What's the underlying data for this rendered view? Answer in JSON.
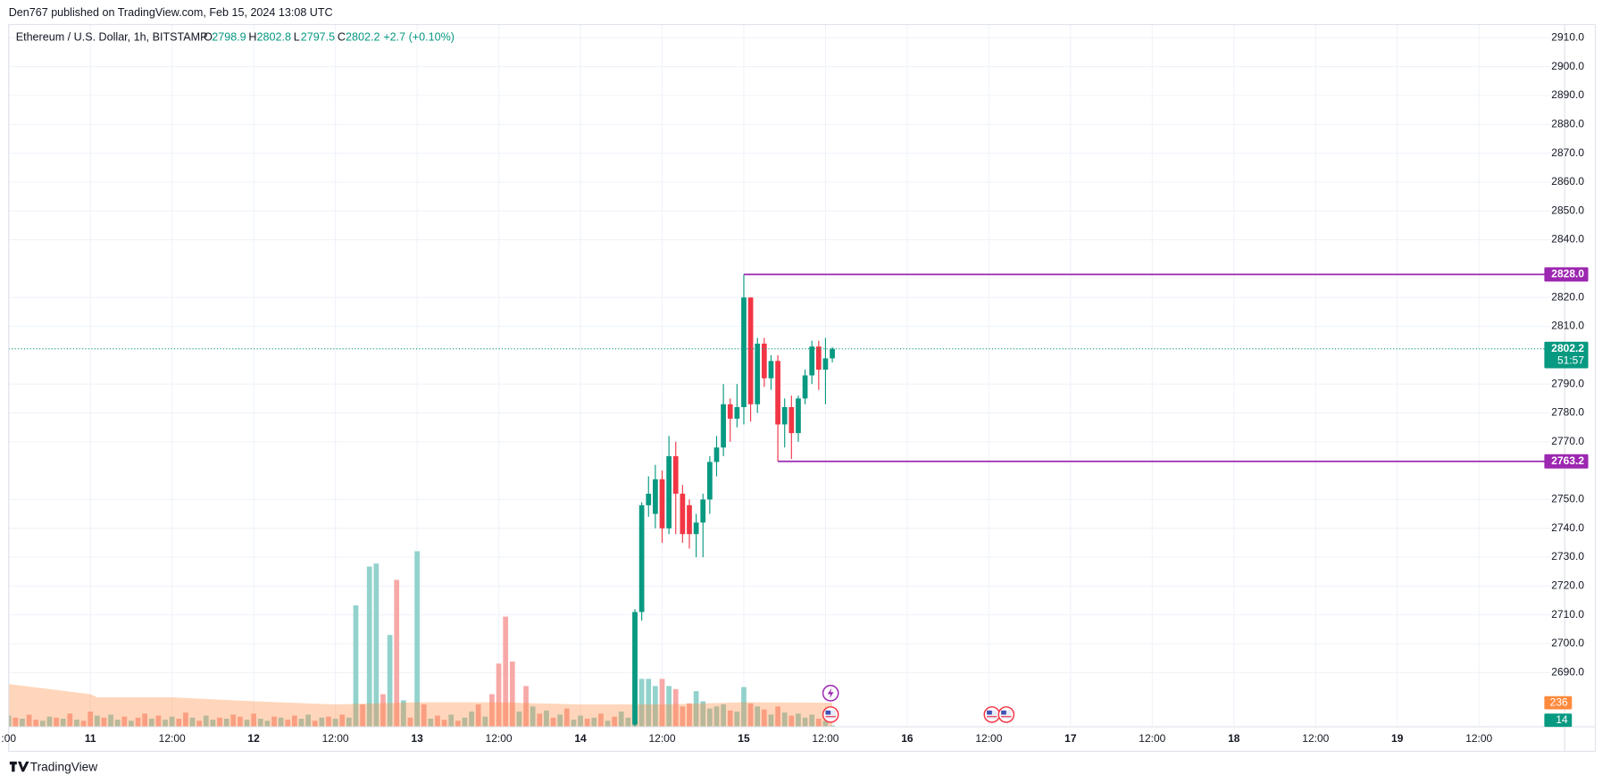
{
  "header": "Den767 published on TradingView.com, Feb 15, 2024 13:08 UTC",
  "footer": "TradingView",
  "chart_data": {
    "type": "candlestick",
    "symbol": "Ethereum / U.S. Dollar, 1h, BITSTAMP",
    "ohlc_labels": [
      "O",
      "H",
      "L",
      "C"
    ],
    "change": "+2.7 (+0.10%)",
    "countdown": "51:57",
    "up_color": "#089981",
    "down_color": "#f23645",
    "level_color": "#9c27b0",
    "xlim": [
      0,
      228.6
    ],
    "ylim": [
      2671.2,
      2914.6
    ],
    "grid": true,
    "xticks": [
      {
        "value": 0,
        "label": ":00"
      },
      {
        "value": 12,
        "label": "11"
      },
      {
        "value": 24,
        "label": "12:00"
      },
      {
        "value": 36,
        "label": "12"
      },
      {
        "value": 48,
        "label": "12:00"
      },
      {
        "value": 60,
        "label": "13"
      },
      {
        "value": 72,
        "label": "12:00"
      },
      {
        "value": 84,
        "label": "14"
      },
      {
        "value": 96,
        "label": "12:00"
      },
      {
        "value": 108,
        "label": "15"
      },
      {
        "value": 120,
        "label": "12:00"
      },
      {
        "value": 132,
        "label": "16"
      },
      {
        "value": 144,
        "label": "12:00"
      },
      {
        "value": 156,
        "label": "17"
      },
      {
        "value": 168,
        "label": "12:00"
      },
      {
        "value": 180,
        "label": "18"
      },
      {
        "value": 192,
        "label": "12:00"
      },
      {
        "value": 204,
        "label": "19"
      },
      {
        "value": 216,
        "label": "12:00"
      }
    ],
    "yticks": [
      {
        "value": 2690,
        "label": "2690.0"
      },
      {
        "value": 2700,
        "label": "2700.0"
      },
      {
        "value": 2710,
        "label": "2710.0"
      },
      {
        "value": 2720,
        "label": "2720.0"
      },
      {
        "value": 2730,
        "label": "2730.0"
      },
      {
        "value": 2740,
        "label": "2740.0"
      },
      {
        "value": 2750,
        "label": "2750.0"
      },
      {
        "value": 2770,
        "label": "2770.0"
      },
      {
        "value": 2780,
        "label": "2780.0"
      },
      {
        "value": 2790,
        "label": "2790.0"
      },
      {
        "value": 2810,
        "label": "2810.0"
      },
      {
        "value": 2820,
        "label": "2820.0"
      },
      {
        "value": 2840,
        "label": "2840.0"
      },
      {
        "value": 2850,
        "label": "2850.0"
      },
      {
        "value": 2860,
        "label": "2860.0"
      },
      {
        "value": 2870,
        "label": "2870.0"
      },
      {
        "value": 2880,
        "label": "2880.0"
      },
      {
        "value": 2890,
        "label": "2890.0"
      },
      {
        "value": 2900,
        "label": "2900.0"
      },
      {
        "value": 2910,
        "label": "2910.0"
      }
    ],
    "candles": {
      "x": [
        92,
        93,
        94,
        95,
        96,
        97,
        98,
        99,
        100,
        101,
        102,
        103,
        104,
        105,
        106,
        107,
        108,
        109,
        110,
        111,
        112,
        113,
        114,
        115,
        116,
        117,
        118,
        119,
        120,
        121
      ],
      "open": [
        2672,
        2711,
        2748,
        2745,
        2757,
        2740,
        2765,
        2752,
        2748,
        2738,
        2742,
        2750,
        2763,
        2768,
        2783,
        2778,
        2782,
        2820,
        2783,
        2804,
        2792,
        2798,
        2776,
        2782,
        2773,
        2785,
        2793,
        2803,
        2795,
        2798.9
      ],
      "high": [
        2712,
        2749,
        2758,
        2762,
        2760,
        2772,
        2770,
        2755,
        2750,
        2745,
        2752,
        2765,
        2772,
        2790,
        2785,
        2790,
        2828,
        2820,
        2806,
        2806,
        2800,
        2800,
        2785,
        2786,
        2786,
        2795,
        2805,
        2805,
        2806,
        2802.8
      ],
      "low": [
        2668,
        2708,
        2744,
        2740,
        2735,
        2738,
        2738,
        2735,
        2733,
        2730,
        2730,
        2745,
        2758,
        2765,
        2770,
        2775,
        2776,
        2777,
        2780,
        2789,
        2788,
        2763.2,
        2768,
        2764,
        2770,
        2783,
        2790,
        2788,
        2783,
        2797.5
      ],
      "close": [
        2711,
        2748,
        2752,
        2757,
        2740,
        2765,
        2752,
        2738,
        2738,
        2742,
        2750,
        2763,
        2768,
        2783,
        2778,
        2782,
        2820,
        2783,
        2804,
        2792,
        2798,
        2776,
        2782,
        2773,
        2785,
        2793,
        2803,
        2795,
        2798.9,
        2802.2
      ]
    },
    "levels": [
      {
        "value": 2828.0,
        "label": "2828.0",
        "start": 108
      },
      {
        "value": 2763.2,
        "label": "2763.2",
        "start": 113
      }
    ],
    "volume": {
      "up_color": "#92d2cc",
      "down_color": "#f7a9a7",
      "values": [
        110,
        90,
        80,
        120,
        70,
        60,
        100,
        90,
        80,
        130,
        70,
        60,
        150,
        110,
        90,
        120,
        70,
        100,
        60,
        90,
        130,
        80,
        110,
        70,
        100,
        80,
        140,
        90,
        60,
        110,
        70,
        90,
        80,
        120,
        100,
        70,
        130,
        80,
        60,
        100,
        90,
        70,
        110,
        80,
        120,
        60,
        90,
        100,
        80,
        120,
        90,
        1190,
        220,
        1570,
        1600,
        320,
        900,
        1440,
        260,
        90,
        1720,
        220,
        80,
        110,
        70,
        120,
        60,
        90,
        150,
        220,
        100,
        320,
        620,
        1080,
        640,
        150,
        400,
        200,
        130,
        160,
        90,
        120,
        180,
        70,
        110,
        80,
        90,
        130,
        60,
        100,
        150,
        90,
        1120,
        470,
        470,
        400,
        470,
        400,
        370,
        200,
        230,
        350,
        250,
        180,
        200,
        220,
        160,
        150,
        390,
        230,
        200,
        170,
        120,
        200,
        140,
        110,
        130,
        90,
        120,
        80,
        60,
        14
      ],
      "rising": [
        true,
        false,
        true,
        false,
        false,
        true,
        true,
        false,
        true,
        false,
        true,
        false,
        false,
        true,
        false,
        true,
        true,
        false,
        true,
        false,
        false,
        true,
        false,
        true,
        true,
        false,
        false,
        true,
        false,
        true,
        true,
        false,
        true,
        false,
        false,
        true,
        false,
        true,
        true,
        false,
        true,
        false,
        false,
        true,
        true,
        false,
        true,
        false,
        true,
        false,
        true,
        true,
        false,
        true,
        true,
        false,
        true,
        false,
        true,
        false,
        true,
        false,
        true,
        false,
        false,
        true,
        false,
        true,
        true,
        false,
        true,
        false,
        false,
        false,
        false,
        true,
        false,
        true,
        false,
        true,
        false,
        true,
        false,
        true,
        true,
        false,
        true,
        false,
        true,
        false,
        true,
        true,
        true,
        true,
        true,
        true,
        false,
        true,
        false,
        false,
        false,
        true,
        true,
        true,
        true,
        true,
        false,
        true,
        true,
        false,
        true,
        false,
        true,
        false,
        true,
        false,
        true,
        true,
        true,
        false,
        true,
        true
      ],
      "ma_color": "#ff8a3d",
      "ma_x": [
        0,
        12,
        13,
        24,
        36,
        48,
        60,
        72,
        84,
        96,
        108,
        121
      ],
      "ma_values": [
        420,
        320,
        290,
        290,
        250,
        220,
        240,
        240,
        220,
        220,
        240,
        236
      ],
      "ma_label": "236",
      "last_label": "14"
    }
  }
}
